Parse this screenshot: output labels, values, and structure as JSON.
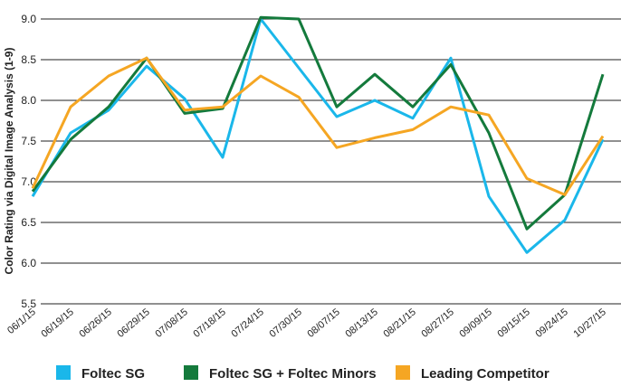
{
  "chart_data": {
    "type": "line",
    "y_label": "Color Rating via Digital Image Analysis (1-9)",
    "categories": [
      "06/1/15",
      "06/19/15",
      "06/26/15",
      "06/29/15",
      "07/08/15",
      "07/18/15",
      "07/24/15",
      "07/30/15",
      "08/07/15",
      "08/13/15",
      "08/21/15",
      "08/27/15",
      "09/09/15",
      "09/15/15",
      "09/24/15",
      "10/27/15"
    ],
    "series": [
      {
        "name": "Foltec SG",
        "color": "#1ab7ea",
        "values": [
          6.82,
          7.6,
          7.88,
          8.42,
          8.02,
          7.3,
          9.0,
          8.4,
          7.8,
          8.0,
          7.78,
          8.52,
          6.82,
          6.13,
          6.53,
          7.52
        ]
      },
      {
        "name": "Foltec SG + Foltec Minors",
        "color": "#147a3c",
        "values": [
          6.88,
          7.52,
          7.92,
          8.52,
          7.84,
          7.9,
          9.02,
          9.0,
          7.92,
          8.32,
          7.92,
          8.44,
          7.6,
          6.42,
          6.84,
          8.32
        ]
      },
      {
        "name": "Leading Competitor",
        "color": "#f5a623",
        "values": [
          6.92,
          7.92,
          8.3,
          8.52,
          7.88,
          7.92,
          8.3,
          8.04,
          7.42,
          7.54,
          7.64,
          7.92,
          7.82,
          7.04,
          6.84,
          7.56
        ]
      }
    ],
    "ylim": [
      5.5,
      9.0
    ],
    "yticks": [
      {
        "value": 5.5,
        "label": "5.5"
      },
      {
        "value": 6,
        "label": "6.0"
      },
      {
        "value": 6.5,
        "label": "6.5"
      },
      {
        "value": 7,
        "label": "7.0"
      },
      {
        "value": 7.5,
        "label": "7.5"
      },
      {
        "value": 8,
        "label": "8.0"
      },
      {
        "value": 8.5,
        "label": "8.5"
      },
      {
        "value": 9,
        "label": "9.0"
      }
    ],
    "grid": true
  }
}
